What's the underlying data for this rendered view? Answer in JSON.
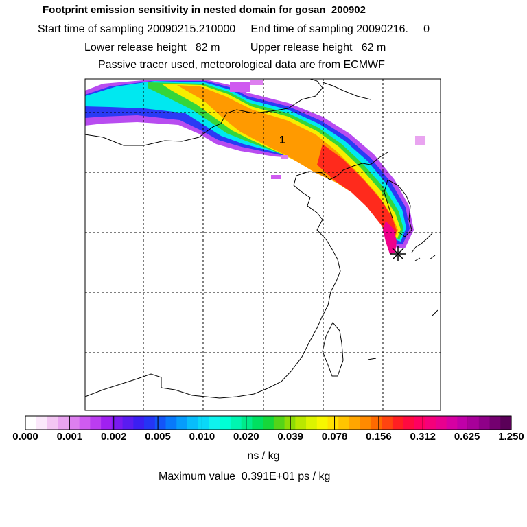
{
  "header": {
    "title": "Footprint emission sensitivity in nested domain for gosan_200902",
    "sampling_line": "Start time of sampling 20090215.210000     End time of sampling 20090216.     0",
    "release_line": "Lower release height   82 m          Upper release height   62 m",
    "tracer_line": "Passive tracer used, meteorological data are from ECMWF"
  },
  "map": {
    "receptor_marker": "receptor-star-icon",
    "region_label": "1"
  },
  "colorbar": {
    "tick_labels": [
      "0.000",
      "0.001",
      "0.002",
      "0.005",
      "0.010",
      "0.020",
      "0.039",
      "0.078",
      "0.156",
      "0.312",
      "0.625",
      "1.250"
    ],
    "colors": [
      "#ffffff",
      "#fbe8fb",
      "#f3c6f3",
      "#e9a4f0",
      "#dd7fef",
      "#cf5bf0",
      "#bb3df0",
      "#a020f0",
      "#7a1af0",
      "#5a1cf0",
      "#3b1ff2",
      "#2535f5",
      "#1355f8",
      "#0879fb",
      "#069cfc",
      "#08bdfb",
      "#0ad8f7",
      "#0ff2ee",
      "#00ffd5",
      "#00f5b0",
      "#00eb8a",
      "#00e060",
      "#16d73a",
      "#55d418",
      "#8edc06",
      "#b9e800",
      "#dcf400",
      "#f7f700",
      "#ffe200",
      "#ffc400",
      "#ffa600",
      "#ff8a00",
      "#ff6a00",
      "#ff4410",
      "#ff1f22",
      "#ff0a40",
      "#ff0060",
      "#f5007a",
      "#e8008f",
      "#d600a2",
      "#c000a8",
      "#a8009a",
      "#8f0088",
      "#740070",
      "#5a0058"
    ],
    "units": "ns / kg",
    "maximum_text": "Maximum value  0.391E+01 ps / kg"
  }
}
